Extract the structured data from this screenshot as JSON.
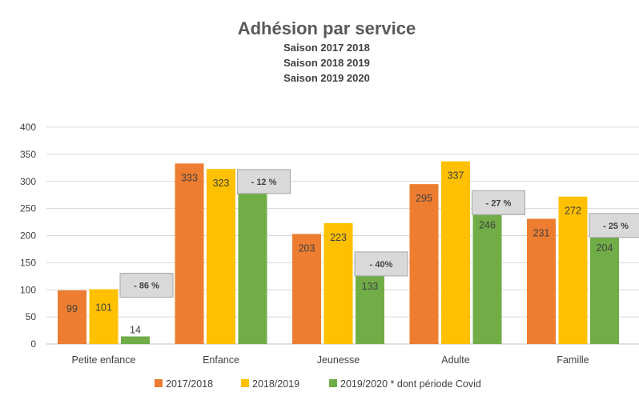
{
  "chart_data": {
    "type": "bar",
    "title": "Adhésion par service",
    "subtitles": [
      "Saison 2017 2018",
      "Saison 2018 2019",
      "Saison 2019 2020"
    ],
    "categories": [
      "Petite enfance",
      "Enfance",
      "Jeunesse",
      "Adulte",
      "Famille"
    ],
    "series": [
      {
        "name": "2017/2018",
        "color": "#ED7D31",
        "values": [
          99,
          333,
          203,
          295,
          231
        ]
      },
      {
        "name": "2018/2019",
        "color": "#FFC000",
        "values": [
          101,
          323,
          223,
          337,
          272
        ]
      },
      {
        "name": "2019/2020 * dont période Covid",
        "color": "#70AD47",
        "values": [
          14,
          285,
          133,
          246,
          204
        ]
      }
    ],
    "data_labels": [
      [
        "99",
        "333",
        "203",
        "295",
        "231"
      ],
      [
        "101",
        "323",
        "223",
        "337",
        "272"
      ],
      [
        "14",
        "",
        "133",
        "246",
        "204"
      ]
    ],
    "annotations": [
      "- 86 %",
      "- 12 %",
      "- 40%",
      "- 27 %",
      "- 25 %"
    ],
    "yticks": [
      0,
      50,
      100,
      150,
      200,
      250,
      300,
      350,
      400
    ],
    "ylim": [
      0,
      400
    ],
    "grid": true,
    "legend_position": "bottom"
  }
}
